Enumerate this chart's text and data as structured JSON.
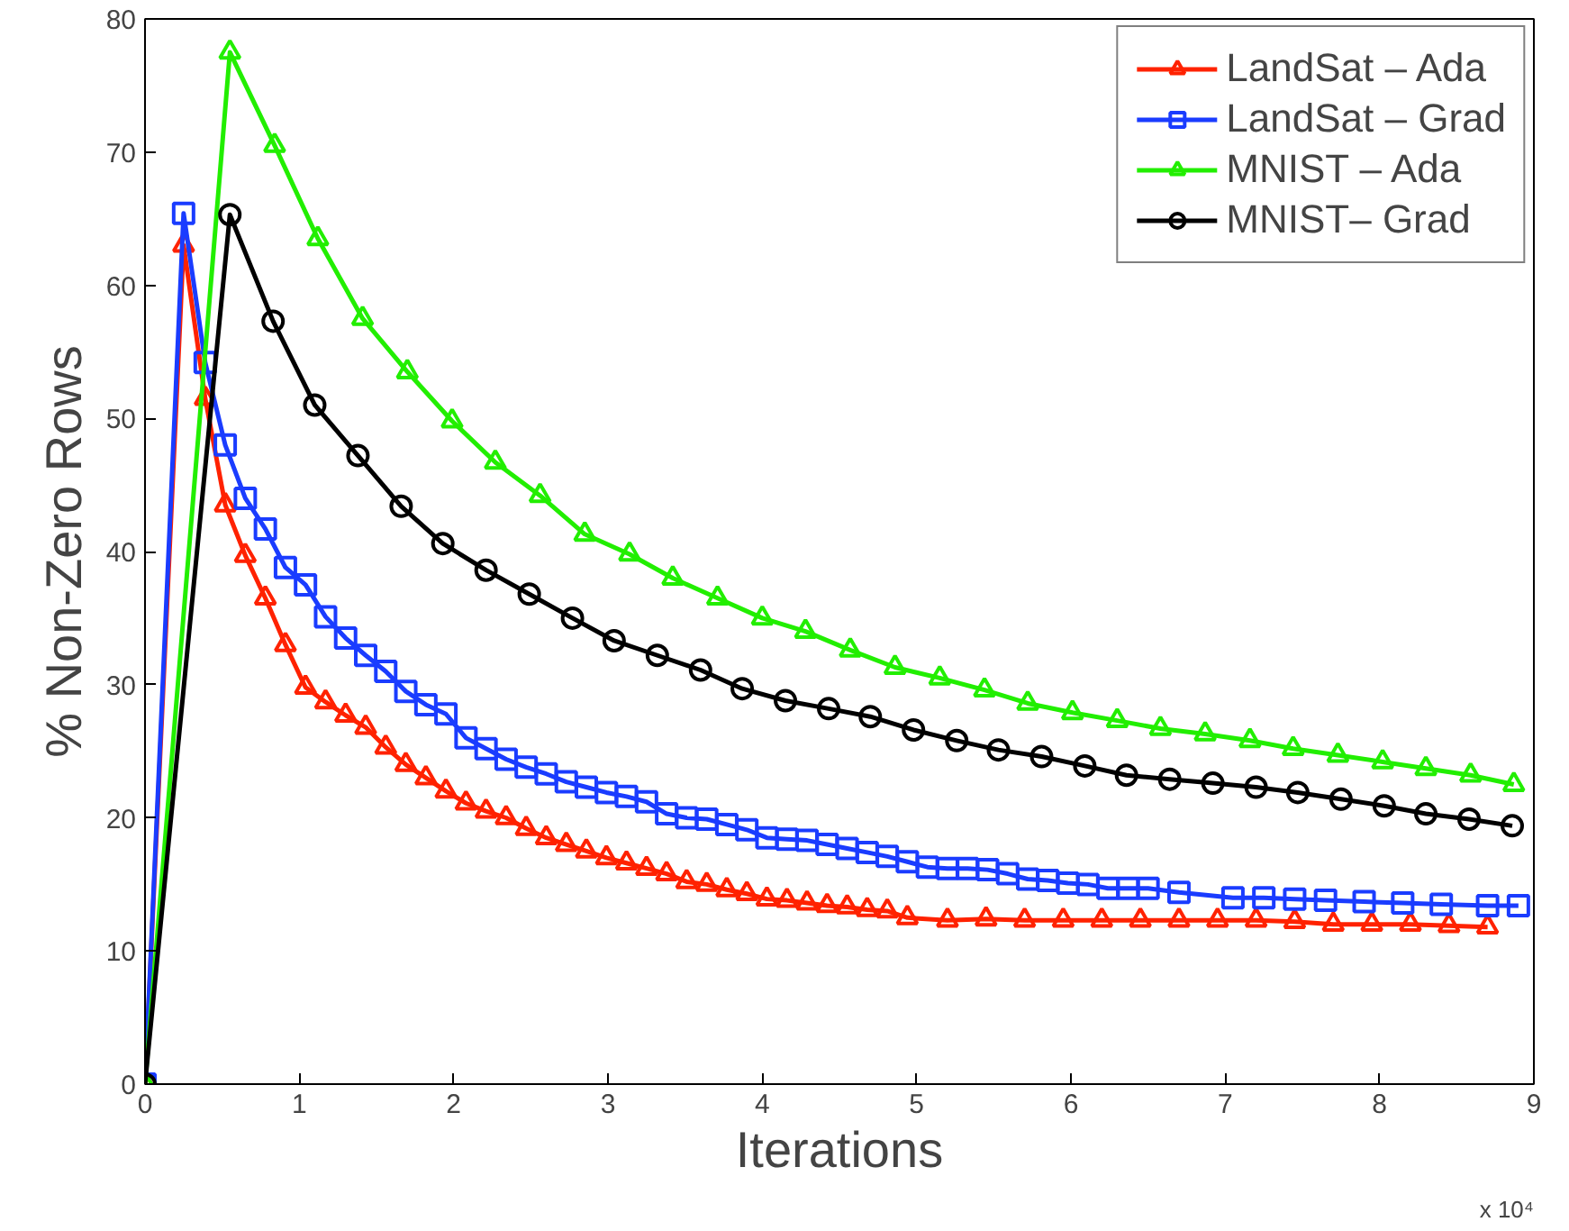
{
  "chart_data": {
    "type": "line",
    "xlabel": "Iterations",
    "ylabel": "% Non-Zero Rows",
    "xlim": [
      0,
      9
    ],
    "ylim": [
      0,
      80
    ],
    "xticks": [
      0,
      1,
      2,
      3,
      4,
      5,
      6,
      7,
      8,
      9
    ],
    "yticks": [
      0,
      10,
      20,
      30,
      40,
      50,
      60,
      70,
      80
    ],
    "annotations": [
      "x 10⁴"
    ],
    "grid": false,
    "legend": "top right",
    "line_style": "solid",
    "series": [
      {
        "name": "LandSat – Ada",
        "color": "#ff2200",
        "marker": "triangle",
        "x": [
          0,
          0.25,
          0.39,
          0.52,
          0.65,
          0.78,
          0.91,
          1.04,
          1.17,
          1.3,
          1.43,
          1.56,
          1.69,
          1.82,
          1.95,
          2.08,
          2.21,
          2.34,
          2.47,
          2.6,
          2.73,
          2.86,
          2.99,
          3.12,
          3.25,
          3.38,
          3.51,
          3.64,
          3.77,
          3.9,
          4.03,
          4.16,
          4.29,
          4.42,
          4.55,
          4.68,
          4.81,
          4.94,
          5.2,
          5.45,
          5.7,
          5.95,
          6.2,
          6.45,
          6.7,
          6.95,
          7.2,
          7.45,
          7.7,
          7.95,
          8.2,
          8.45,
          8.7
        ],
        "values": [
          0,
          63,
          51.5,
          43.5,
          39.7,
          36.5,
          33,
          29.8,
          28.7,
          27.7,
          26.8,
          25.3,
          24,
          23,
          22,
          21.1,
          20.5,
          20,
          19.2,
          18.5,
          18,
          17.5,
          17,
          16.6,
          16.2,
          15.8,
          15.2,
          15,
          14.6,
          14.3,
          13.9,
          13.8,
          13.6,
          13.4,
          13.3,
          13.1,
          13,
          12.5,
          12.3,
          12.4,
          12.3,
          12.3,
          12.3,
          12.3,
          12.3,
          12.3,
          12.3,
          12.2,
          12,
          12,
          12,
          11.9,
          11.8
        ]
      },
      {
        "name": "LandSat – Grad",
        "color": "#1a3cff",
        "marker": "square",
        "x": [
          0,
          0.25,
          0.39,
          0.52,
          0.65,
          0.78,
          0.91,
          1.04,
          1.17,
          1.3,
          1.43,
          1.56,
          1.69,
          1.82,
          1.95,
          2.08,
          2.21,
          2.34,
          2.47,
          2.6,
          2.73,
          2.86,
          2.99,
          3.12,
          3.25,
          3.38,
          3.51,
          3.64,
          3.77,
          3.9,
          4.03,
          4.16,
          4.29,
          4.42,
          4.55,
          4.68,
          4.81,
          4.94,
          5.07,
          5.2,
          5.33,
          5.46,
          5.59,
          5.72,
          5.85,
          5.98,
          6.11,
          6.24,
          6.37,
          6.5,
          6.7,
          7.05,
          7.25,
          7.45,
          7.65,
          7.9,
          8.15,
          8.4,
          8.7,
          8.9
        ],
        "values": [
          0,
          65.4,
          54.2,
          48,
          44,
          41.7,
          38.8,
          37.5,
          35.1,
          33.5,
          32.2,
          31,
          29.5,
          28.5,
          27.8,
          26,
          25.2,
          24.4,
          23.8,
          23.3,
          22.7,
          22.3,
          21.9,
          21.6,
          21.2,
          20.3,
          20,
          19.9,
          19.5,
          19.1,
          18.5,
          18.4,
          18.3,
          18,
          17.7,
          17.4,
          17.1,
          16.7,
          16.3,
          16.2,
          16.2,
          16.1,
          15.8,
          15.4,
          15.3,
          15.1,
          15,
          14.7,
          14.7,
          14.7,
          14.4,
          14,
          14,
          13.9,
          13.8,
          13.7,
          13.6,
          13.5,
          13.4,
          13.4
        ]
      },
      {
        "name": "MNIST – Ada",
        "color": "#22ee00",
        "marker": "triangle",
        "x": [
          0,
          0.55,
          0.84,
          1.12,
          1.41,
          1.7,
          1.99,
          2.27,
          2.56,
          2.85,
          3.14,
          3.42,
          3.71,
          4.0,
          4.28,
          4.57,
          4.86,
          5.15,
          5.44,
          5.72,
          6.01,
          6.3,
          6.58,
          6.87,
          7.16,
          7.44,
          7.73,
          8.02,
          8.3,
          8.59,
          8.87
        ],
        "values": [
          0,
          77.5,
          70.5,
          63.5,
          57.5,
          53.5,
          49.8,
          46.7,
          44.2,
          41.3,
          39.8,
          38,
          36.5,
          35,
          34,
          32.6,
          31.3,
          30.5,
          29.6,
          28.6,
          27.9,
          27.3,
          26.7,
          26.3,
          25.8,
          25.2,
          24.7,
          24.2,
          23.7,
          23.2,
          22.5
        ]
      },
      {
        "name": "MNIST– Grad",
        "color": "#000000",
        "marker": "circle",
        "x": [
          0,
          0.55,
          0.83,
          1.1,
          1.38,
          1.66,
          1.93,
          2.21,
          2.49,
          2.77,
          3.04,
          3.32,
          3.6,
          3.87,
          4.15,
          4.43,
          4.7,
          4.98,
          5.26,
          5.53,
          5.81,
          6.09,
          6.36,
          6.64,
          6.92,
          7.2,
          7.47,
          7.75,
          8.03,
          8.3,
          8.58,
          8.86
        ],
        "values": [
          0,
          65.3,
          57.3,
          51,
          47.2,
          43.4,
          40.6,
          38.6,
          36.8,
          35,
          33.3,
          32.2,
          31.1,
          29.7,
          28.8,
          28.2,
          27.6,
          26.6,
          25.8,
          25.1,
          24.6,
          23.9,
          23.2,
          22.9,
          22.6,
          22.3,
          21.9,
          21.4,
          20.9,
          20.3,
          19.9,
          19.4
        ]
      }
    ]
  }
}
